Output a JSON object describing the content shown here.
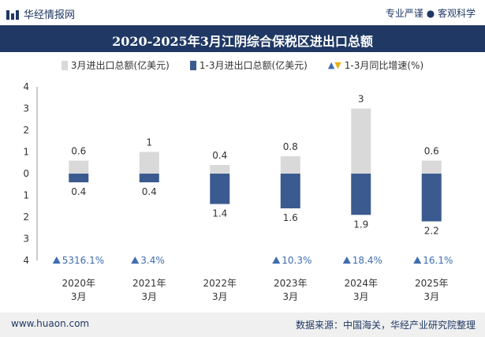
{
  "header": {
    "brand": "华经情报网",
    "tagline": "专业严谨 ● 客观科学"
  },
  "title": "2020-2025年3月江阴综合保税区进出口总额",
  "legend": {
    "month": "3月进出口总额(亿美元)",
    "cumulative": "1-3月进出口总额(亿美元)",
    "growth": "1-3月同比增速(%)"
  },
  "footer": {
    "site": "www.huaon.com",
    "source": "数据来源：中国海关，华经产业研究院整理"
  },
  "colors": {
    "month": "#d9d9d9",
    "cumulative": "#3b5a8f",
    "growth_up": "#3f6db0",
    "growth_down": "#e8b014",
    "title_bg": "#1f3864"
  },
  "chart_data": {
    "type": "bar",
    "categories": [
      "2020年3月",
      "2021年3月",
      "2022年3月",
      "2023年3月",
      "2024年3月",
      "2025年3月"
    ],
    "category_lines": [
      [
        "2020年",
        "3月"
      ],
      [
        "2021年",
        "3月"
      ],
      [
        "2022年",
        "3月"
      ],
      [
        "2023年",
        "3月"
      ],
      [
        "2024年",
        "3月"
      ],
      [
        "2025年",
        "3月"
      ]
    ],
    "series": [
      {
        "name": "3月进出口总额(亿美元)",
        "values": [
          0.6,
          1,
          0.4,
          0.8,
          3,
          0.6
        ],
        "labels": [
          "0.6",
          "1",
          "0.4",
          "0.8",
          "3",
          "0.6"
        ],
        "direction": "up"
      },
      {
        "name": "1-3月进出口总额(亿美元)",
        "values": [
          0.4,
          0.4,
          1.4,
          1.6,
          1.9,
          2.2
        ],
        "labels": [
          "0.4",
          "0.4",
          "1.4",
          "1.6",
          "1.9",
          "2.2"
        ],
        "direction": "down"
      },
      {
        "name": "1-3月同比增速(%)",
        "values": [
          5316.1,
          3.4,
          null,
          10.3,
          18.4,
          16.1
        ],
        "labels": [
          "5316.1%",
          "3.4%",
          "",
          "10.3%",
          "18.4%",
          "16.1%"
        ]
      }
    ],
    "y_ticks": [
      "4",
      "3",
      "2",
      "1",
      "0",
      "1",
      "2",
      "3",
      "4"
    ],
    "ylim": [
      -4,
      4
    ],
    "grid": false
  }
}
